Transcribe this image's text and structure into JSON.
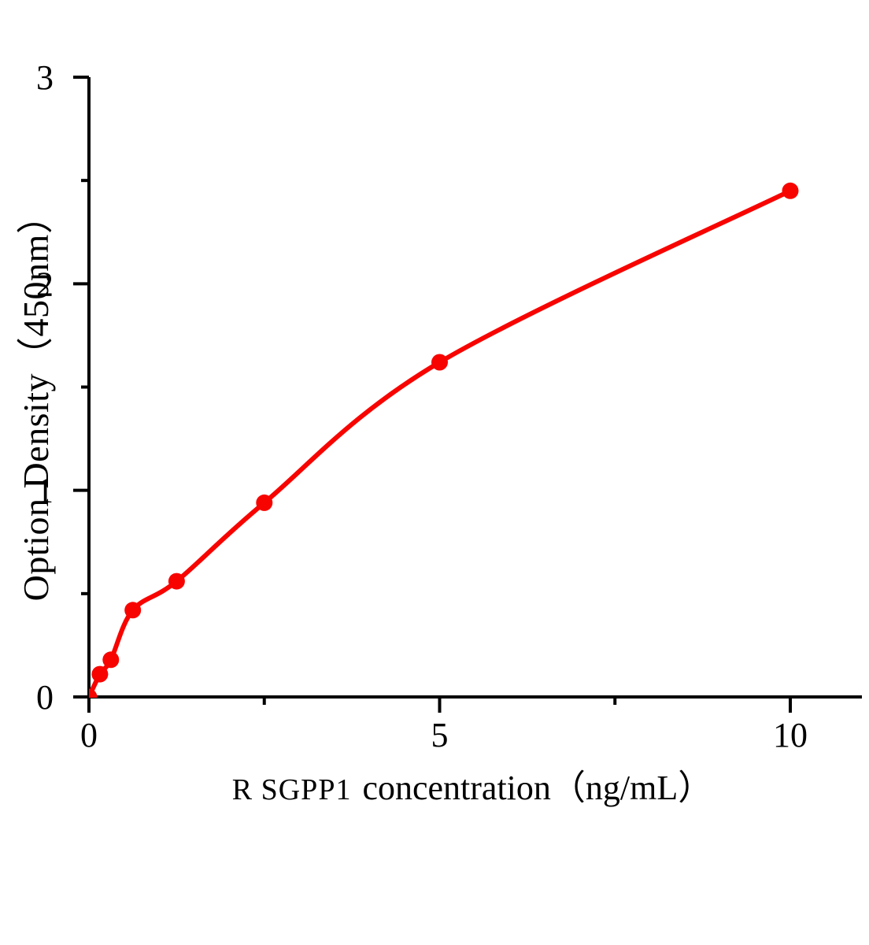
{
  "figure": {
    "background_color": "#ffffff"
  },
  "chart_data": {
    "type": "scatter",
    "title": "",
    "xlabel": "R SGPP1 concentration（ng/mL）",
    "xlabel_protein": "R SGPP1",
    "xlabel_rest": "concentration（ng/mL）",
    "ylabel": "Option Density（450nm）",
    "x": [
      0,
      0.156,
      0.312,
      0.625,
      1.25,
      2.5,
      5,
      10
    ],
    "y": [
      0,
      0.11,
      0.18,
      0.42,
      0.56,
      0.94,
      1.62,
      2.45
    ],
    "fit_line": "smooth curve through all points, ends at last point",
    "xlim": [
      0,
      11
    ],
    "ylim": [
      0,
      3
    ],
    "x_ticks_major": [
      0,
      5,
      10
    ],
    "x_tick_labels": [
      "0",
      "5",
      "10"
    ],
    "x_ticks_minor": [
      2.5,
      7.5
    ],
    "y_ticks_major": [
      0,
      1,
      2,
      3
    ],
    "y_tick_labels": [
      "0",
      "1",
      "2",
      "3"
    ],
    "y_ticks_minor": [
      0.5,
      1.5,
      2.5
    ],
    "grid": false,
    "legend": null,
    "colors": {
      "curve": "#f80400",
      "marker": "#f80400",
      "axis": "#000000",
      "text": "#000000"
    }
  }
}
